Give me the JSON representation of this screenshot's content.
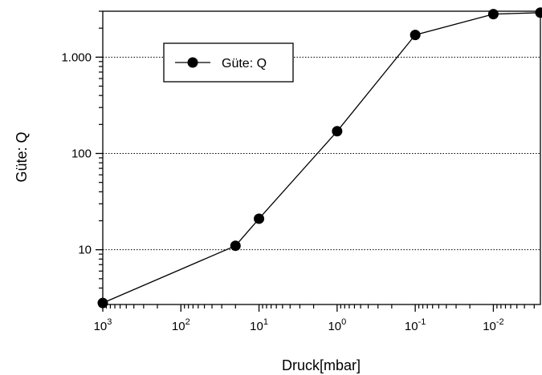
{
  "chart_data": {
    "type": "line",
    "xlabel": "Druck[mbar]",
    "ylabel": "Güte: Q",
    "x_scale": "log",
    "x_reversed": true,
    "y_scale": "log",
    "xlim": [
      1000,
      0.0025
    ],
    "ylim": [
      2.7,
      3000
    ],
    "x_ticks": [
      {
        "value": 1000,
        "base": "10",
        "exp": "3"
      },
      {
        "value": 100,
        "base": "10",
        "exp": "2"
      },
      {
        "value": 10,
        "base": "10",
        "exp": "1"
      },
      {
        "value": 1,
        "base": "10",
        "exp": "0"
      },
      {
        "value": 0.1,
        "base": "10",
        "exp": "-1"
      },
      {
        "value": 0.01,
        "base": "10",
        "exp": "-2"
      }
    ],
    "y_ticks": [
      {
        "value": 10,
        "label": "10"
      },
      {
        "value": 100,
        "label": "100"
      },
      {
        "value": 1000,
        "label": "1.000"
      }
    ],
    "grid": {
      "horizontal": true,
      "vertical": false,
      "style": "dotted"
    },
    "legend_position": "top-left",
    "series": [
      {
        "name": "Güte: Q",
        "color": "#000000",
        "marker": "circle",
        "x": [
          1000,
          20,
          10,
          1,
          0.1,
          0.01,
          0.0025
        ],
        "y": [
          2.8,
          11,
          21,
          170,
          1700,
          2800,
          2900
        ]
      }
    ]
  }
}
